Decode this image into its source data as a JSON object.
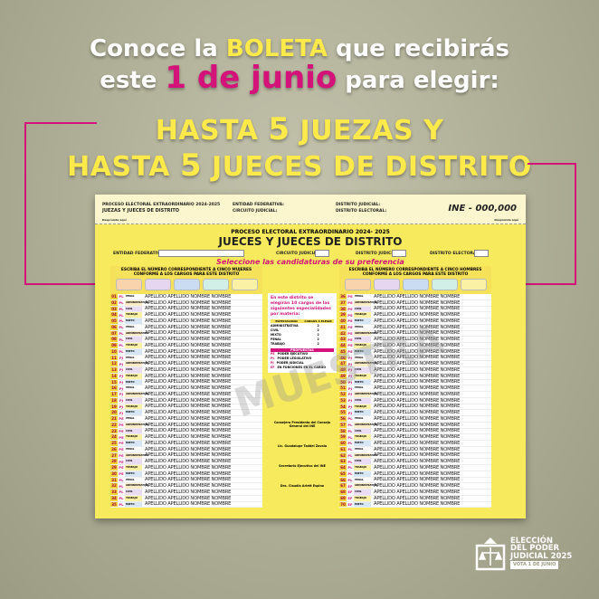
{
  "headline": {
    "l1a": "Conoce la ",
    "l1b": "BOLETA",
    "l1c": " que recibirás",
    "l2a": "este ",
    "l2b": "1 de junio",
    "l2c": " para elegir:",
    "l3a": "HASTA ",
    "l3b": "5",
    "l3c": " JUEZAS Y",
    "l4a": "HASTA ",
    "l4b": "5",
    "l4c": " JUECES DE DISTRITO"
  },
  "colors": {
    "accent": "#d3127a",
    "highlight": "#fce94a",
    "ballot": "#f7ea5c"
  },
  "stub": {
    "process": "PROCESO ELECTORAL EXTRAORDINARIO 2024-2025",
    "title": "JUEZAS Y JUECES DE DISTRITO",
    "entidad": "ENTIDAD FEDERATIVA:",
    "circuito": "CIRCUITO JUDICIAL:",
    "distrito_judicial": "DISTRITO JUDICIAL:",
    "distrito_electoral": "DISTRITO ELECTORAL:",
    "folio": "INE - 000,000",
    "desprende": "Desprenda aquí"
  },
  "ballot": {
    "process": "PROCESO ELECTORAL EXTRAORDINARIO 2024- 2025",
    "title": "JUECES Y JUECES DE DISTRITO",
    "entidad": "ENTIDAD FEDERATIVA",
    "circuito": "CIRCUITO JUDICIAL",
    "distrito_judicial": "DISTRITO JUDICIAL",
    "distrito_electoral": "DISTRITO ELECTORAL",
    "instruction": "Seleccione las candidaturas de su preferencia",
    "left_header": "ESCRIBA EL NÚMERO CORRESPONDIENTE A CINCO MUJERES CONFORME A LOS CARGOS PARA ESTE DISTRITO",
    "right_header": "ESCRIBA EL NÚMERO CORRESPONDIENTE A CINCO HOMBRES CONFORME A LOS CARGOS PARA ESTE DISTRITO",
    "box_colors": [
      "#f8d3ac",
      "#e6d6f0",
      "#cadcf2",
      "#d2efe7",
      "#fbf1a4"
    ],
    "candidate_name": "APELLIDO APELLIDO NOMBRE NOMBRE",
    "specialties": [
      "PENAL",
      "ADMINISTRATIVA",
      "CIVIL",
      "TRABAJO",
      "MIXTO"
    ],
    "specialty_colors": [
      "#ffffff",
      "#fbecc8",
      "#eadcf2",
      "#fbf1a4",
      "#d6e6f4"
    ],
    "left_rows": [
      "01",
      "02",
      "03",
      "04",
      "05",
      "06",
      "07",
      "08",
      "09",
      "10",
      "11",
      "12",
      "13",
      "14",
      "15",
      "16",
      "17",
      "18",
      "19",
      "20",
      "21",
      "22",
      "23",
      "24",
      "25",
      "26",
      "27",
      "28",
      "29",
      "30",
      "31",
      "32",
      "33",
      "34",
      "35"
    ],
    "left_powers": [
      "PL",
      "PL",
      "PL",
      "PL",
      "PL",
      "PL",
      "PL",
      "PL",
      "PL",
      "PL",
      "PJ",
      "PJ",
      "PJ",
      "PJ",
      "PJ",
      "PJ",
      "PJ",
      "PJ",
      "PJ",
      "PJ",
      "PE",
      "PE",
      "PE",
      "PE",
      "PE",
      "PE",
      "PE",
      "PE",
      "PE",
      "PE",
      "PL",
      "PL",
      "PL",
      "PL",
      "PL"
    ],
    "right_rows": [
      "36",
      "37",
      "38",
      "39",
      "40",
      "41",
      "42",
      "43",
      "44",
      "45",
      "46",
      "47",
      "48",
      "49",
      "50",
      "51",
      "52",
      "53",
      "54",
      "55",
      "56",
      "57",
      "58",
      "59",
      "60",
      "61",
      "62",
      "63",
      "64",
      "65",
      "66",
      "67",
      "68",
      "69",
      "70"
    ],
    "right_powers": [
      "PE",
      "PE",
      "PE",
      "PE",
      "PE",
      "PE",
      "PE",
      "PE",
      "PE",
      "PE",
      "PJ",
      "PJ",
      "PJ",
      "PJ",
      "PJ",
      "PJ",
      "PJ",
      "PJ",
      "PJ",
      "PJ",
      "PL",
      "PL",
      "PL",
      "PL",
      "PL",
      "PL",
      "PL",
      "PL",
      "PL",
      "PL",
      "PL",
      "EF",
      "EF",
      "EF",
      "EF"
    ],
    "info": {
      "intro": "En este distrito se elegirán 10 cargos de las siguientes especialidades por materia:",
      "col1": "ESPECIALIDAD",
      "col2": "CARGOS A ELEGIR",
      "rows": [
        [
          "ADMINISTRATIVA",
          "2"
        ],
        [
          "CIVIL",
          "2"
        ],
        [
          "MIXTO",
          "2"
        ],
        [
          "PENAL",
          "2"
        ],
        [
          "TRABAJO",
          "2"
        ]
      ],
      "powers_title": "PROPUESTAS",
      "powers": [
        [
          "PE",
          "PODER EJECUTIVO"
        ],
        [
          "PL",
          "PODER LEGISLATIVO"
        ],
        [
          "PJ",
          "PODER JUDICIAL"
        ],
        [
          "EF",
          "EN FUNCIONES EN EL CARGO"
        ]
      ]
    },
    "signatures": [
      "Consejera Presidenta del Consejo General del INE",
      "Lic. Guadalupe Taddei Zavala",
      "Secretario Ejecutivo del INE",
      "Dra. Claudia Arlett Espino"
    ],
    "watermark": "MUESTRA"
  },
  "logo": {
    "l1": "ELECCIÓN",
    "l2": "DEL PODER",
    "l3": "JUDICIAL 2025",
    "tag": "VOTA 1 DE JUNIO"
  }
}
